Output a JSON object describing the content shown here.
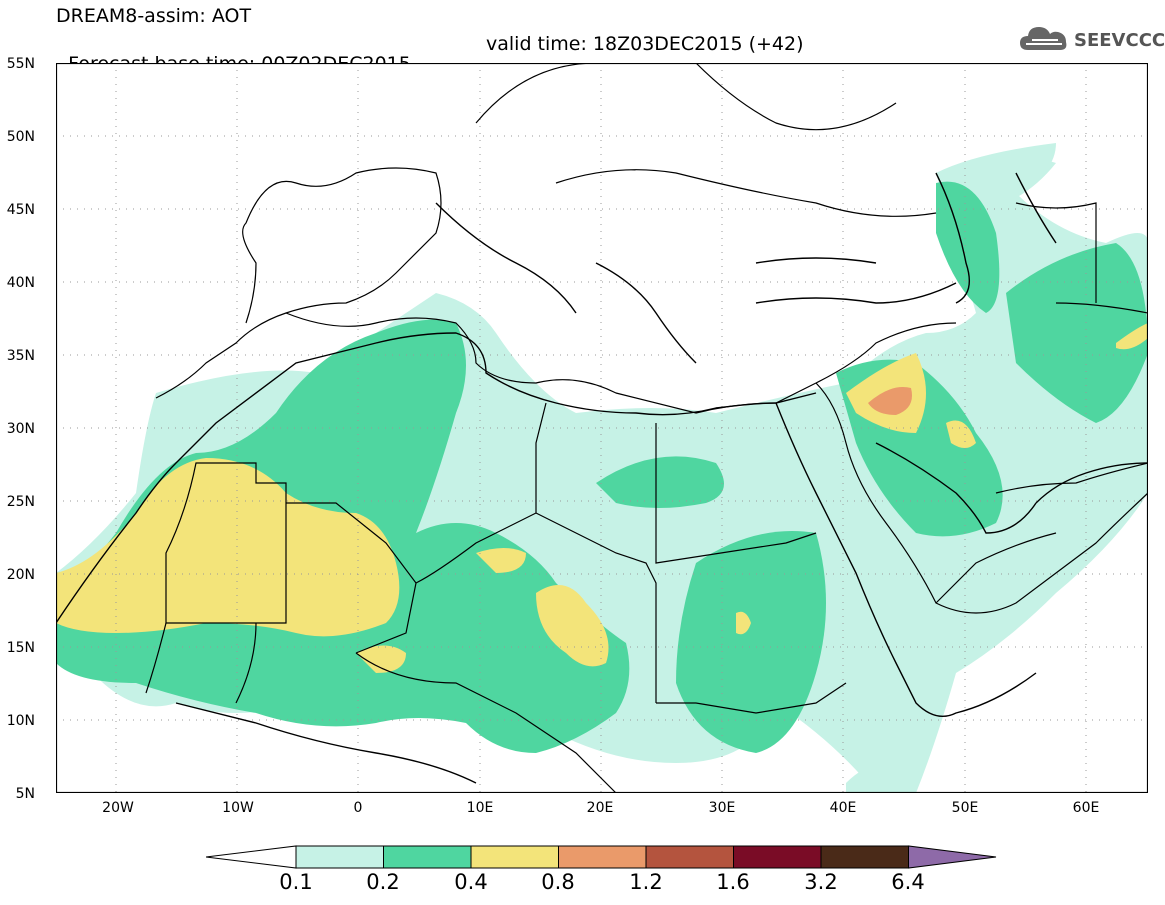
{
  "title_line1": "DREAM8-assim: AOT",
  "title_line2_base": "Forecast base time: 00Z02DEC2015",
  "title_line2_valid": "valid time: 18Z03DEC2015 (+42)",
  "logo_text": "SEEVCCC",
  "logo_icon": "cloud-icon",
  "y_axis_labels": [
    "55N",
    "50N",
    "45N",
    "40N",
    "35N",
    "30N",
    "25N",
    "20N",
    "15N",
    "10N",
    "5N"
  ],
  "x_axis_labels": [
    "20W",
    "10W",
    "0",
    "10E",
    "20E",
    "30E",
    "40E",
    "50E",
    "60E"
  ],
  "colorbar": {
    "labels": [
      "0.1",
      "0.2",
      "0.4",
      "0.8",
      "1.2",
      "1.6",
      "3.2",
      "6.4"
    ],
    "colors": [
      "#ffffff",
      "#c6f2e6",
      "#4fd6a0",
      "#f3e47a",
      "#ea9a6a",
      "#b4543e",
      "#7a0c26",
      "#4a2a18",
      "#8e6aa8"
    ]
  },
  "field_colors": {
    "low": "#c6f2e6",
    "mid": "#4fd6a0",
    "high": "#f3e47a",
    "vhigh": "#ea9a6a",
    "border": "#000000",
    "grid": "#999999"
  }
}
